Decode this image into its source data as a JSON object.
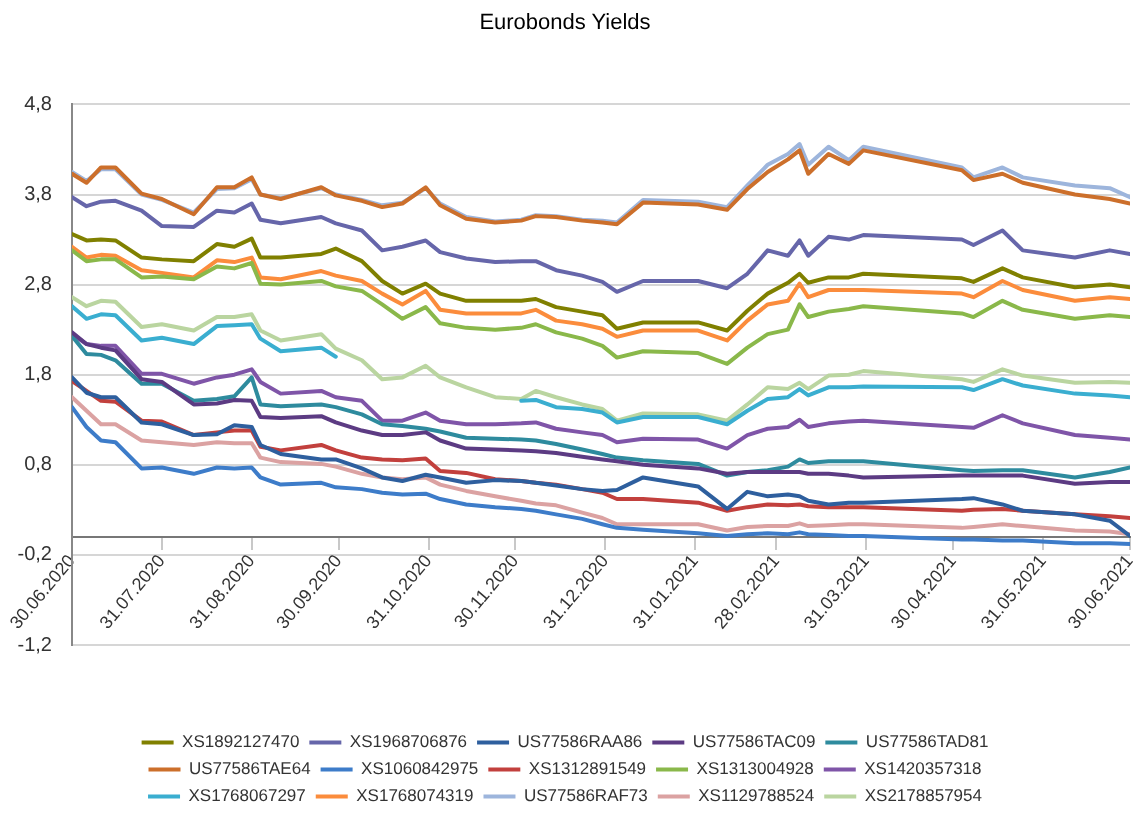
{
  "chart_data": {
    "type": "line",
    "title": "Eurobonds Yields",
    "x": [
      "2020-06-30",
      "2020-07-05",
      "2020-07-10",
      "2020-07-15",
      "2020-07-24",
      "2020-07-31",
      "2020-08-11",
      "2020-08-19",
      "2020-08-25",
      "2020-08-31",
      "2020-09-03",
      "2020-09-10",
      "2020-09-24",
      "2020-09-29",
      "2020-10-08",
      "2020-10-15",
      "2020-10-22",
      "2020-10-30",
      "2020-11-04",
      "2020-11-13",
      "2020-11-23",
      "2020-12-02",
      "2020-12-07",
      "2020-12-14",
      "2020-12-23",
      "2020-12-30",
      "2021-01-04",
      "2021-01-13",
      "2021-02-01",
      "2021-02-11",
      "2021-02-18",
      "2021-02-25",
      "2021-03-04",
      "2021-03-08",
      "2021-03-11",
      "2021-03-18",
      "2021-03-25",
      "2021-03-30",
      "2021-05-03",
      "2021-05-07",
      "2021-05-17",
      "2021-05-24",
      "2021-06-11",
      "2021-06-23",
      "2021-06-30"
    ],
    "series": [
      {
        "name": "XS1892127470",
        "color": "#808000",
        "values": [
          3.36,
          3.29,
          3.3,
          3.29,
          3.1,
          3.08,
          3.06,
          3.25,
          3.22,
          3.31,
          3.1,
          3.1,
          3.14,
          3.2,
          3.06,
          2.84,
          2.7,
          2.81,
          2.7,
          2.62,
          2.62,
          2.62,
          2.64,
          2.55,
          2.5,
          2.46,
          2.31,
          2.38,
          2.38,
          2.29,
          2.51,
          2.7,
          2.82,
          2.92,
          2.82,
          2.88,
          2.88,
          2.92,
          2.87,
          2.83,
          2.98,
          2.88,
          2.77,
          2.8,
          2.77
        ]
      },
      {
        "name": "XS1968706876",
        "color": "#6666aa",
        "values": [
          3.77,
          3.67,
          3.72,
          3.73,
          3.62,
          3.45,
          3.44,
          3.62,
          3.6,
          3.7,
          3.52,
          3.48,
          3.55,
          3.48,
          3.4,
          3.18,
          3.22,
          3.29,
          3.16,
          3.09,
          3.05,
          3.06,
          3.06,
          2.96,
          2.9,
          2.83,
          2.72,
          2.84,
          2.84,
          2.76,
          2.92,
          3.18,
          3.12,
          3.29,
          3.12,
          3.33,
          3.3,
          3.35,
          3.3,
          3.24,
          3.4,
          3.18,
          3.1,
          3.18,
          3.14
        ]
      },
      {
        "name": "US77586RAA86",
        "color": "#2e5f9e",
        "values": [
          1.77,
          1.6,
          1.55,
          1.55,
          1.27,
          1.25,
          1.13,
          1.14,
          1.24,
          1.22,
          1.02,
          0.92,
          0.86,
          0.86,
          0.76,
          0.66,
          0.62,
          0.69,
          0.66,
          0.6,
          0.63,
          0.62,
          0.6,
          0.57,
          0.53,
          0.51,
          0.52,
          0.66,
          0.56,
          0.31,
          0.5,
          0.45,
          0.47,
          0.45,
          0.4,
          0.36,
          0.38,
          0.38,
          0.42,
          0.43,
          0.36,
          0.29,
          0.25,
          0.18,
          0.01
        ]
      },
      {
        "name": "US77586TAC09",
        "color": "#5c3b83",
        "values": [
          2.27,
          2.14,
          2.1,
          2.07,
          1.75,
          1.72,
          1.47,
          1.48,
          1.52,
          1.51,
          1.33,
          1.32,
          1.34,
          1.27,
          1.18,
          1.13,
          1.13,
          1.16,
          1.07,
          0.98,
          0.97,
          0.96,
          0.95,
          0.93,
          0.89,
          0.86,
          0.84,
          0.8,
          0.76,
          0.7,
          0.72,
          0.72,
          0.72,
          0.72,
          0.7,
          0.7,
          0.68,
          0.66,
          0.68,
          0.68,
          0.68,
          0.68,
          0.59,
          0.61,
          0.61
        ]
      },
      {
        "name": "US77586TAD81",
        "color": "#2e8b9e",
        "values": [
          2.23,
          2.03,
          2.02,
          1.96,
          1.7,
          1.7,
          1.51,
          1.53,
          1.56,
          1.77,
          1.47,
          1.45,
          1.47,
          1.44,
          1.36,
          1.25,
          1.23,
          1.2,
          1.17,
          1.1,
          1.09,
          1.08,
          1.07,
          1.03,
          0.97,
          0.92,
          0.88,
          0.85,
          0.81,
          0.68,
          0.72,
          0.74,
          0.78,
          0.86,
          0.82,
          0.84,
          0.84,
          0.84,
          0.74,
          0.73,
          0.74,
          0.74,
          0.66,
          0.72,
          0.77
        ]
      },
      {
        "name": "US77586TAE64",
        "color": "#cc6f2b",
        "values": [
          4.03,
          3.93,
          4.1,
          4.1,
          3.81,
          3.75,
          3.58,
          3.88,
          3.88,
          3.99,
          3.8,
          3.75,
          3.88,
          3.79,
          3.73,
          3.66,
          3.7,
          3.88,
          3.68,
          3.53,
          3.49,
          3.51,
          3.56,
          3.55,
          3.51,
          3.49,
          3.47,
          3.71,
          3.69,
          3.63,
          3.86,
          4.05,
          4.19,
          4.29,
          4.03,
          4.25,
          4.14,
          4.29,
          4.07,
          3.96,
          4.03,
          3.93,
          3.8,
          3.75,
          3.7
        ]
      },
      {
        "name": "XS1060842975",
        "color": "#3d7cc9",
        "values": [
          1.44,
          1.22,
          1.07,
          1.05,
          0.76,
          0.77,
          0.7,
          0.77,
          0.76,
          0.77,
          0.66,
          0.58,
          0.6,
          0.55,
          0.53,
          0.49,
          0.47,
          0.48,
          0.42,
          0.36,
          0.33,
          0.31,
          0.29,
          0.25,
          0.2,
          0.14,
          0.1,
          0.08,
          0.04,
          0.01,
          0.03,
          0.04,
          0.03,
          0.05,
          0.03,
          0.02,
          0.01,
          0.01,
          -0.03,
          -0.03,
          -0.04,
          -0.04,
          -0.07,
          -0.07,
          -0.08
        ]
      },
      {
        "name": "XS1312891549",
        "color": "#c2403d",
        "values": [
          1.73,
          1.62,
          1.51,
          1.5,
          1.29,
          1.28,
          1.13,
          1.16,
          1.18,
          1.18,
          1.0,
          0.96,
          1.02,
          0.96,
          0.88,
          0.86,
          0.85,
          0.87,
          0.73,
          0.71,
          0.64,
          0.62,
          0.6,
          0.58,
          0.53,
          0.49,
          0.42,
          0.42,
          0.38,
          0.29,
          0.33,
          0.36,
          0.35,
          0.36,
          0.34,
          0.33,
          0.33,
          0.33,
          0.29,
          0.3,
          0.31,
          0.29,
          0.25,
          0.23,
          0.21
        ]
      },
      {
        "name": "XS1313004928",
        "color": "#8ab84a",
        "values": [
          3.18,
          3.06,
          3.08,
          3.08,
          2.88,
          2.89,
          2.86,
          3.0,
          2.98,
          3.04,
          2.81,
          2.8,
          2.84,
          2.78,
          2.73,
          2.58,
          2.42,
          2.55,
          2.37,
          2.32,
          2.3,
          2.32,
          2.36,
          2.27,
          2.2,
          2.12,
          1.99,
          2.06,
          2.04,
          1.92,
          2.1,
          2.25,
          2.3,
          2.58,
          2.44,
          2.5,
          2.53,
          2.56,
          2.48,
          2.44,
          2.62,
          2.52,
          2.42,
          2.46,
          2.44
        ]
      },
      {
        "name": "XS1420357318",
        "color": "#7f55a8",
        "values": [
          2.25,
          2.14,
          2.12,
          2.12,
          1.81,
          1.81,
          1.7,
          1.77,
          1.8,
          1.86,
          1.72,
          1.59,
          1.62,
          1.55,
          1.51,
          1.29,
          1.29,
          1.38,
          1.29,
          1.25,
          1.25,
          1.26,
          1.27,
          1.2,
          1.16,
          1.13,
          1.05,
          1.09,
          1.08,
          0.98,
          1.13,
          1.2,
          1.22,
          1.3,
          1.22,
          1.26,
          1.28,
          1.29,
          1.22,
          1.21,
          1.35,
          1.26,
          1.13,
          1.1,
          1.08
        ]
      },
      {
        "name": "XS1768067297",
        "color": "#3aaed0",
        "values": [
          2.56,
          2.42,
          2.47,
          2.46,
          2.18,
          2.21,
          2.14,
          2.34,
          2.35,
          2.36,
          2.2,
          2.06,
          2.1,
          2.0,
          null,
          null,
          null,
          null,
          null,
          null,
          null,
          1.51,
          1.52,
          1.44,
          1.42,
          1.38,
          1.27,
          1.33,
          1.33,
          1.25,
          1.4,
          1.53,
          1.55,
          1.64,
          1.57,
          1.66,
          1.66,
          1.67,
          1.66,
          1.63,
          1.75,
          1.68,
          1.59,
          1.57,
          1.55
        ]
      },
      {
        "name": "XS1768074319",
        "color": "#fb8c3c",
        "values": [
          3.22,
          3.1,
          3.13,
          3.12,
          2.96,
          2.93,
          2.88,
          3.07,
          3.05,
          3.1,
          2.88,
          2.86,
          2.95,
          2.9,
          2.84,
          2.7,
          2.58,
          2.73,
          2.52,
          2.48,
          2.48,
          2.48,
          2.52,
          2.4,
          2.36,
          2.31,
          2.22,
          2.29,
          2.29,
          2.18,
          2.4,
          2.58,
          2.62,
          2.81,
          2.66,
          2.74,
          2.74,
          2.74,
          2.7,
          2.66,
          2.84,
          2.74,
          2.62,
          2.66,
          2.64
        ]
      },
      {
        "name": "US77586RAF73",
        "color": "#9db5dc",
        "values": [
          4.05,
          3.95,
          4.08,
          4.08,
          3.8,
          3.74,
          3.6,
          3.86,
          3.87,
          3.97,
          3.8,
          3.76,
          3.87,
          3.8,
          3.74,
          3.68,
          3.71,
          3.87,
          3.7,
          3.55,
          3.5,
          3.52,
          3.57,
          3.56,
          3.52,
          3.51,
          3.49,
          3.74,
          3.72,
          3.66,
          3.9,
          4.13,
          4.25,
          4.36,
          4.13,
          4.33,
          4.18,
          4.33,
          4.1,
          3.99,
          4.1,
          3.99,
          3.9,
          3.87,
          3.77
        ]
      },
      {
        "name": "XS1129788524",
        "color": "#dba2a2",
        "values": [
          1.55,
          1.4,
          1.25,
          1.25,
          1.07,
          1.05,
          1.02,
          1.05,
          1.04,
          1.04,
          0.88,
          0.83,
          0.81,
          0.78,
          0.7,
          0.66,
          0.64,
          0.66,
          0.58,
          0.51,
          0.45,
          0.4,
          0.37,
          0.35,
          0.27,
          0.21,
          0.14,
          0.14,
          0.14,
          0.07,
          0.11,
          0.12,
          0.12,
          0.15,
          0.12,
          0.13,
          0.14,
          0.14,
          0.1,
          0.11,
          0.14,
          0.12,
          0.07,
          0.06,
          0.03
        ]
      },
      {
        "name": "XS2178857954",
        "color": "#bad5a0",
        "values": [
          2.66,
          2.56,
          2.62,
          2.61,
          2.33,
          2.36,
          2.29,
          2.44,
          2.44,
          2.47,
          2.29,
          2.18,
          2.25,
          2.09,
          1.96,
          1.75,
          1.77,
          1.9,
          1.77,
          1.66,
          1.55,
          1.53,
          1.62,
          1.55,
          1.47,
          1.42,
          1.29,
          1.37,
          1.36,
          1.29,
          1.47,
          1.66,
          1.64,
          1.71,
          1.64,
          1.79,
          1.8,
          1.84,
          1.75,
          1.72,
          1.86,
          1.79,
          1.71,
          1.72,
          1.71
        ]
      }
    ],
    "xlim": [
      "2020-06-30",
      "2021-06-30"
    ],
    "xticks": [
      {
        "value": "2020-06-30",
        "label": "30.06.2020"
      },
      {
        "value": "2020-07-31",
        "label": "31.07.2020"
      },
      {
        "value": "2020-08-31",
        "label": "31.08.2020"
      },
      {
        "value": "2020-09-30",
        "label": "30.09.2020"
      },
      {
        "value": "2020-10-31",
        "label": "31.10.2020"
      },
      {
        "value": "2020-11-30",
        "label": "30.11.2020"
      },
      {
        "value": "2020-12-31",
        "label": "31.12.2020"
      },
      {
        "value": "2021-01-31",
        "label": "31.01.2021"
      },
      {
        "value": "2021-02-28",
        "label": "28.02.2021"
      },
      {
        "value": "2021-03-31",
        "label": "31.03.2021"
      },
      {
        "value": "2021-04-30",
        "label": "30.04.2021"
      },
      {
        "value": "2021-05-31",
        "label": "31.05.2021"
      },
      {
        "value": "2021-06-30",
        "label": "30.06.2021"
      }
    ],
    "ylim": [
      -1.2,
      4.8
    ],
    "yticks": [
      {
        "value": -1.2,
        "label": "-1,2"
      },
      {
        "value": -0.2,
        "label": "-0,2"
      },
      {
        "value": 0.8,
        "label": "0,8"
      },
      {
        "value": 1.8,
        "label": "1,8"
      },
      {
        "value": 2.8,
        "label": "2,8"
      },
      {
        "value": 3.8,
        "label": "3,8"
      },
      {
        "value": 4.8,
        "label": "4,8"
      }
    ],
    "grid": "y",
    "legend": "bottom"
  }
}
